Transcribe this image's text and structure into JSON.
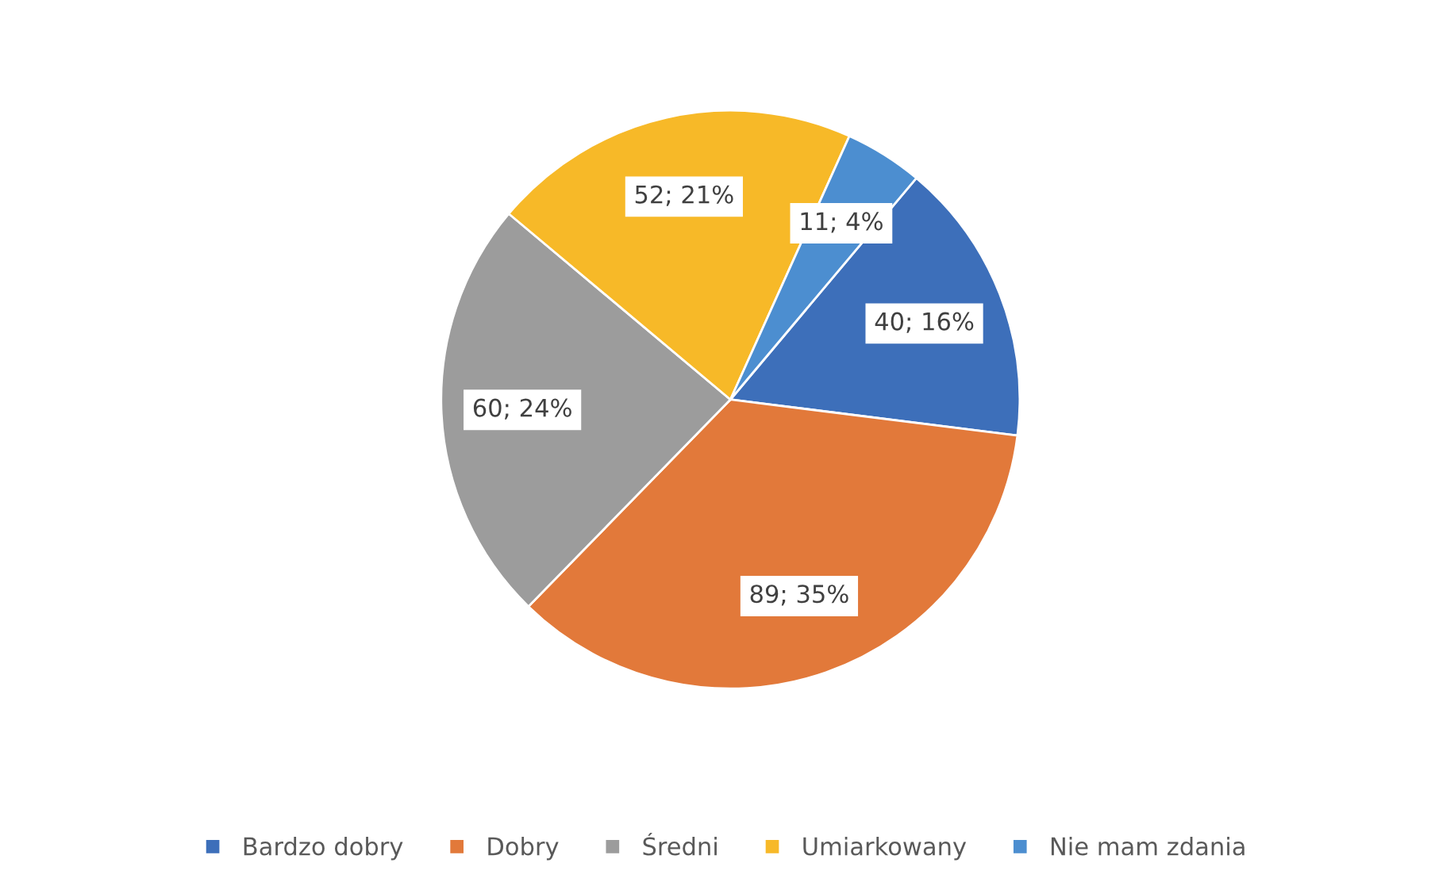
{
  "chart_data": {
    "type": "pie",
    "categories": [
      "Bardzo dobry",
      "Dobry",
      "Średni",
      "Umiarkowany",
      "Nie mam zdania"
    ],
    "values": [
      40,
      89,
      60,
      52,
      11
    ],
    "colors": [
      "#3d6fba",
      "#e2793a",
      "#9c9c9c",
      "#f7b928",
      "#4c8ed0"
    ],
    "value_labels": [
      "40; 16%",
      "89; 35%",
      "60; 24%",
      "52; 21%",
      "11; 4%"
    ],
    "legend": "bottom"
  }
}
